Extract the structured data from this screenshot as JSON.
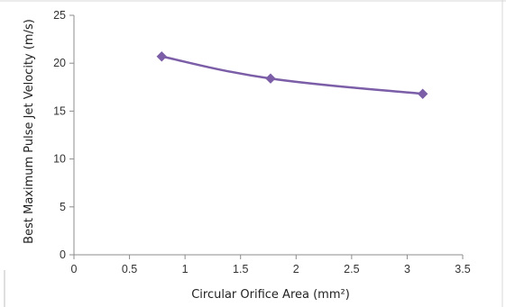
{
  "chart_data": {
    "type": "line",
    "xlabel": "Circular Orifice Area (mm²)",
    "ylabel": "Best Maximum Pulse Jet Velocity (m/s)",
    "xlim": [
      0,
      3.5
    ],
    "ylim": [
      0,
      25
    ],
    "x_ticks": [
      "0",
      "0.5",
      "1",
      "1.5",
      "2",
      "2.5",
      "3",
      "3.5"
    ],
    "y_ticks": [
      "0",
      "5",
      "10",
      "15",
      "20",
      "25"
    ],
    "grid": false,
    "legend": "none",
    "series": [
      {
        "x": [
          0.79,
          1.77,
          3.14
        ],
        "y": [
          20.7,
          18.4,
          16.8
        ],
        "color": "#7b5ea7",
        "marker": "diamond"
      }
    ]
  }
}
